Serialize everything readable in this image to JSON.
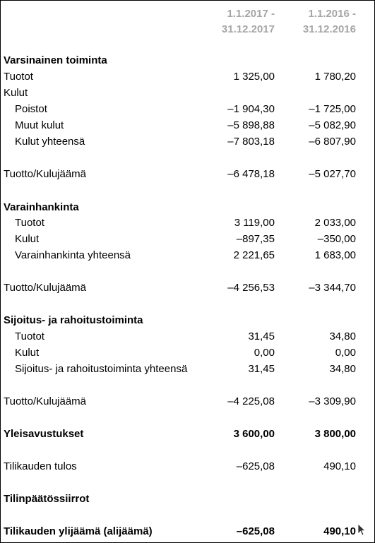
{
  "header": {
    "col1_line1": "1.1.2017 -",
    "col1_line2": "31.12.2017",
    "col2_line1": "1.1.2016 -",
    "col2_line2": "31.12.2016"
  },
  "rows": [
    {
      "label": "Varsinainen toiminta",
      "v1": "",
      "v2": ""
    },
    {
      "label": "Tuotot",
      "v1": "1 325,00",
      "v2": "1 780,20"
    },
    {
      "label": "Kulut",
      "v1": "",
      "v2": ""
    },
    {
      "label": "Poistot",
      "v1": "–1 904,30",
      "v2": "–1 725,00"
    },
    {
      "label": "Muut kulut",
      "v1": "–5 898,88",
      "v2": "–5 082,90"
    },
    {
      "label": "Kulut yhteensä",
      "v1": "–7 803,18",
      "v2": "–6 807,90"
    },
    {
      "label": "Tuotto/Kulujäämä",
      "v1": "–6 478,18",
      "v2": "–5 027,70"
    },
    {
      "label": "Varainhankinta",
      "v1": "",
      "v2": ""
    },
    {
      "label": "Tuotot",
      "v1": "3 119,00",
      "v2": "2 033,00"
    },
    {
      "label": "Kulut",
      "v1": "–897,35",
      "v2": "–350,00"
    },
    {
      "label": "Varainhankinta yhteensä",
      "v1": "2 221,65",
      "v2": "1 683,00"
    },
    {
      "label": "Tuotto/Kulujäämä",
      "v1": "–4 256,53",
      "v2": "–3 344,70"
    },
    {
      "label": "Sijoitus- ja rahoitustoiminta",
      "v1": "",
      "v2": ""
    },
    {
      "label": "Tuotot",
      "v1": "31,45",
      "v2": "34,80"
    },
    {
      "label": "Kulut",
      "v1": "0,00",
      "v2": "0,00"
    },
    {
      "label": "Sijoitus- ja rahoitustoiminta yhteensä",
      "v1": "31,45",
      "v2": "34,80"
    },
    {
      "label": "Tuotto/Kulujäämä",
      "v1": "–4 225,08",
      "v2": "–3 309,90"
    },
    {
      "label": "Yleisavustukset",
      "v1": "3 600,00",
      "v2": "3 800,00"
    },
    {
      "label": "Tilikauden tulos",
      "v1": "–625,08",
      "v2": "490,10"
    },
    {
      "label": "Tilinpäätössiirrot",
      "v1": "",
      "v2": ""
    },
    {
      "label": "Tilikauden ylijäämä (alijäämä)",
      "v1": "–625,08",
      "v2": "490,10"
    }
  ]
}
